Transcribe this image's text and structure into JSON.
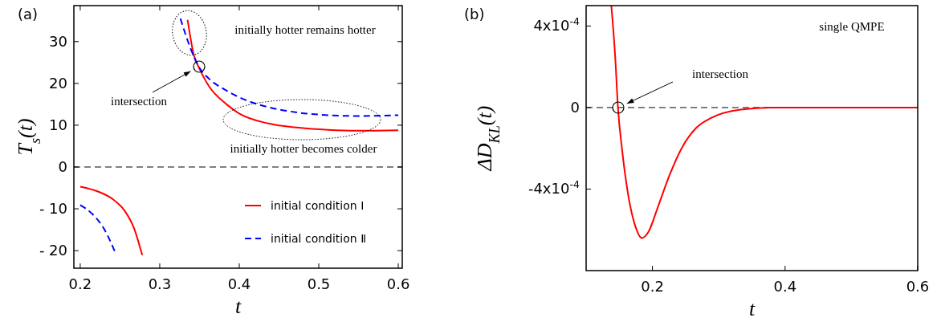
{
  "chart_data": [
    {
      "type": "line",
      "title": "(a)",
      "xlabel": "t",
      "ylabel": "T$_{s}$(t)",
      "xlim": [
        0.192,
        0.605
      ],
      "ylim": [
        -24.2,
        38.6
      ],
      "xticks": [
        0.2,
        0.3,
        0.4,
        0.5,
        0.6
      ],
      "yticks": [
        {
          "value": -20,
          "label": "- 20"
        },
        {
          "value": -10,
          "label": "- 10"
        },
        0,
        10,
        20,
        30
      ],
      "legend": "bottom right",
      "x": [
        0.2,
        0.223,
        0.241,
        0.256,
        0.268,
        0.278,
        0.3,
        0.335,
        0.343,
        0.35,
        0.362,
        0.384,
        0.399,
        0.437,
        0.475,
        0.512,
        0.55,
        0.6
      ],
      "series": [
        {
          "name": "initial condition Ⅰ",
          "color": "#ff0000",
          "line_style": "solid",
          "values": [
            -4.7,
            -5.9,
            -7.7,
            -10.5,
            -14.8,
            -21.1,
            null,
            35.2,
            26.7,
            23.5,
            19.3,
            15.0,
            12.9,
            10.4,
            9.4,
            8.9,
            8.7,
            8.8
          ]
        },
        {
          "name": "initial condition Ⅱ",
          "color": "#0000ff",
          "line_style": "dashed",
          "x": [
            0.2,
            0.215,
            0.23,
            0.244,
            0.3,
            0.326,
            0.335,
            0.343,
            0.35,
            0.362,
            0.381,
            0.407,
            0.437,
            0.475,
            0.512,
            0.55,
            0.6
          ],
          "values": [
            -9.1,
            -11.2,
            -14.8,
            -20.4,
            null,
            35.5,
            30.3,
            26.4,
            23.7,
            21.1,
            18.6,
            16.1,
            14.3,
            13.0,
            12.4,
            12.2,
            12.4
          ]
        }
      ],
      "ref_lines": [
        {
          "axis": "y",
          "value": 0,
          "color": "#000000",
          "line_style": "dashed"
        }
      ],
      "annotations": [
        "initially hotter remains hotter",
        "intersection",
        "initially hotter becomes colder"
      ]
    },
    {
      "type": "line",
      "title": "(b)",
      "xlabel": "t",
      "ylabel": "ΔD$_{KL}$(t)",
      "xlim": [
        0.1,
        0.6
      ],
      "ylim": [
        -0.0008,
        0.0005
      ],
      "xticks": [
        0.2,
        0.4,
        0.6
      ],
      "yticks": [
        {
          "value": -0.0004,
          "label": "-4x10$^{-4}$"
        },
        0,
        {
          "value": 0.0004,
          "label": "4x10$^{-4}$"
        }
      ],
      "x": [
        0.138,
        0.144,
        0.148,
        0.154,
        0.163,
        0.174,
        0.184,
        0.194,
        0.208,
        0.226,
        0.244,
        0.266,
        0.289,
        0.333,
        0.378,
        0.423,
        0.6
      ],
      "series": [
        {
          "color": "#ff0000",
          "line_style": "solid",
          "values": [
            0.0005,
            0.00024,
            0,
            -0.0002,
            -0.00042,
            -0.00058,
            -0.00064,
            -0.00061,
            -0.00049,
            -0.00033,
            -0.0002,
            -0.0001,
            -5e-05,
            -1e-05,
            0,
            0,
            0
          ]
        }
      ],
      "ref_lines": [
        {
          "axis": "y",
          "value": 0,
          "color": "#000000",
          "line_style": "dashed"
        }
      ],
      "annotations": [
        "single QMPE",
        "intersection"
      ]
    }
  ]
}
